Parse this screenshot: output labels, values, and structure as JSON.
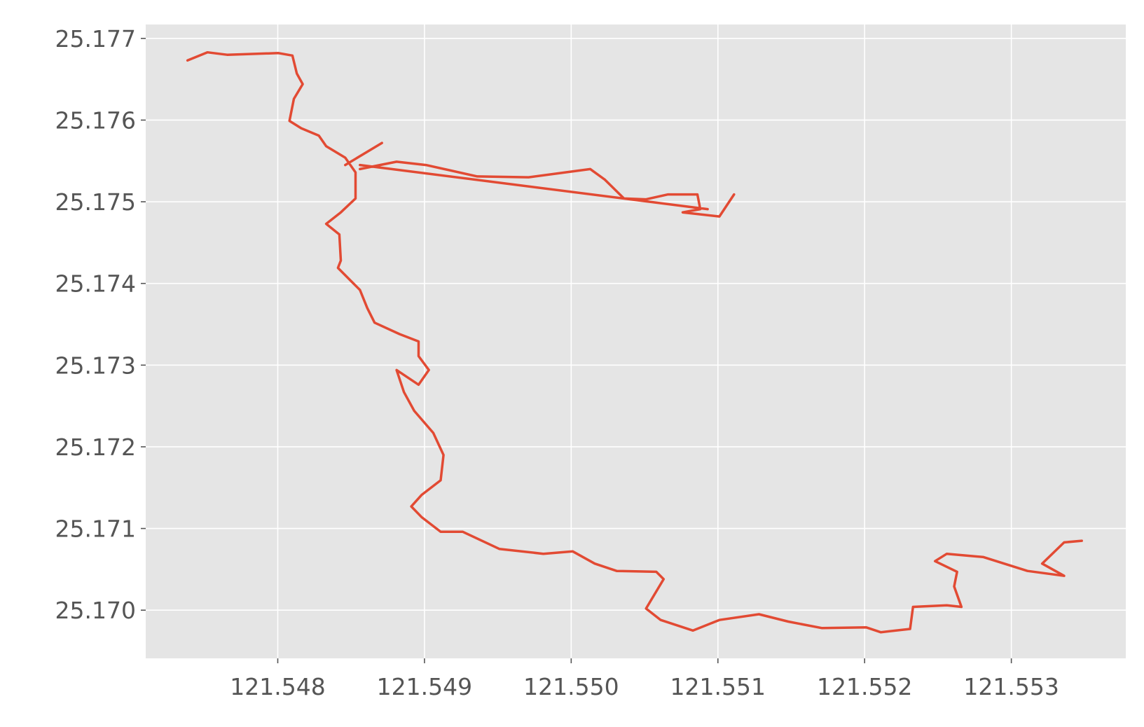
{
  "chart_data": {
    "type": "line",
    "color": "#e24a33",
    "grid": true,
    "xlim": [
      121.5471,
      121.55378
    ],
    "ylim": [
      25.16941,
      25.17717
    ],
    "xticks": [
      121.548,
      121.549,
      {
        "value": 121.55,
        "label": "121.550"
      },
      121.551,
      121.552,
      121.553
    ],
    "yticks": [
      {
        "value": 25.17,
        "label": "25.170"
      },
      25.171,
      25.172,
      25.173,
      25.174,
      25.175,
      25.176,
      25.177
    ],
    "x": [
      121.547385,
      121.54752,
      121.547655,
      121.548005,
      121.5481,
      121.54813,
      121.54817,
      121.54811,
      121.54808,
      121.54816,
      121.54828,
      121.54833,
      121.54846,
      121.54853,
      121.54853,
      121.54843,
      121.54833,
      121.54842,
      121.54843,
      121.54841,
      121.54851,
      121.54856,
      121.54861,
      121.54866,
      121.54883,
      121.54896,
      121.54896,
      121.54903,
      121.54896,
      121.54881,
      121.54886,
      121.54893,
      121.54906,
      121.54913,
      121.54911,
      121.54898,
      121.54891,
      121.54898,
      121.54911,
      121.54926,
      121.54951,
      121.54981,
      121.55001,
      121.55016,
      121.55031,
      121.55058,
      121.55063,
      121.55051,
      121.55061,
      121.55083,
      121.55101,
      121.55128,
      121.55148,
      121.55171,
      121.55201,
      121.55211,
      121.55231,
      121.55233,
      121.55256,
      121.55266,
      121.55261,
      121.55263,
      121.55248,
      121.55256,
      121.55281,
      121.55311,
      121.55336,
      121.55321,
      121.55336,
      121.55348,
      null,
      121.54846,
      121.54871,
      null,
      121.54856,
      121.54881,
      121.54901,
      121.54936,
      121.54971,
      121.55013,
      121.55023,
      121.55036,
      121.55051,
      121.55066,
      121.55086,
      121.55088,
      121.55076,
      121.55101,
      121.55111,
      null,
      121.54856,
      121.55093
    ],
    "values": [
      25.17673,
      25.17683,
      25.1768,
      25.17682,
      25.17679,
      25.17657,
      25.17644,
      25.17626,
      25.17599,
      25.1759,
      25.17581,
      25.17568,
      25.17554,
      25.17536,
      25.17504,
      25.17487,
      25.17473,
      25.1746,
      25.17428,
      25.17419,
      25.17401,
      25.17392,
      25.1737,
      25.17352,
      25.17338,
      25.17329,
      25.17311,
      25.17294,
      25.17276,
      25.17294,
      25.17267,
      25.17244,
      25.17217,
      25.1719,
      25.17159,
      25.17141,
      25.17127,
      25.17114,
      25.17096,
      25.17096,
      25.17075,
      25.17069,
      25.17072,
      25.17057,
      25.17048,
      25.17047,
      25.17038,
      25.17002,
      25.16988,
      25.16975,
      25.16988,
      25.16995,
      25.16986,
      25.16978,
      25.16979,
      25.16973,
      25.16977,
      25.17004,
      25.17006,
      25.17004,
      25.17029,
      25.17047,
      25.1706,
      25.17069,
      25.17065,
      25.17048,
      25.17042,
      25.17057,
      25.17083,
      25.17085,
      null,
      25.17545,
      25.17572,
      null,
      25.1754,
      25.17549,
      25.17545,
      25.17531,
      25.1753,
      25.1754,
      25.17527,
      25.17504,
      25.17503,
      25.17509,
      25.17509,
      25.17491,
      25.17487,
      25.17482,
      25.17509,
      null,
      25.17545,
      25.17491
    ]
  }
}
